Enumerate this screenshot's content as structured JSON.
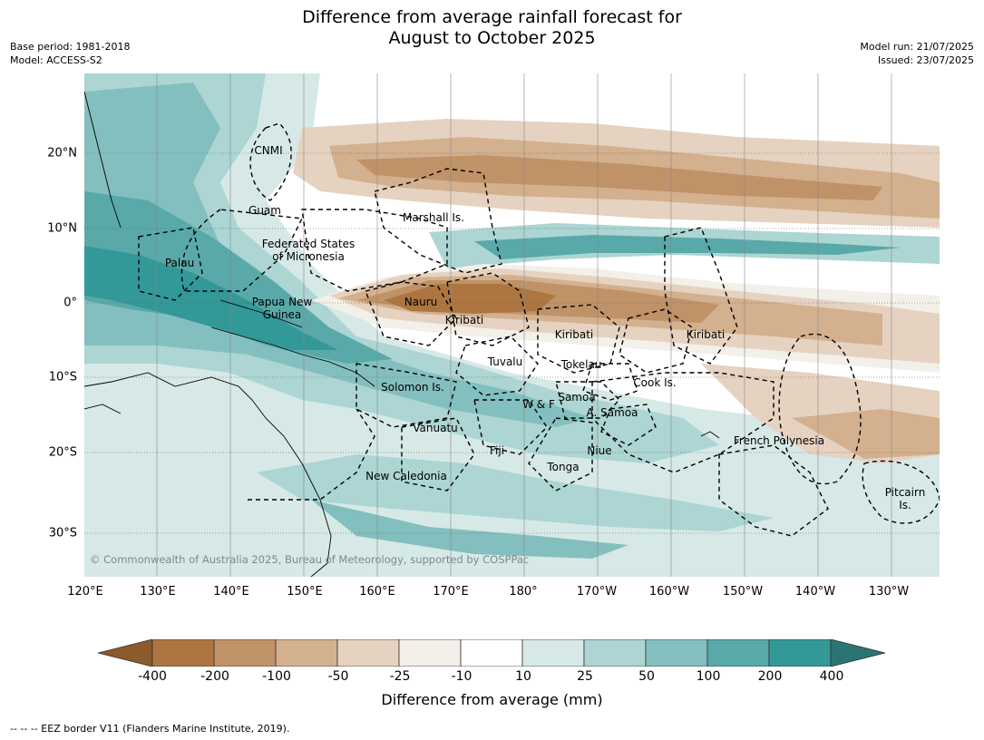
{
  "title_line1": "Difference from average rainfall forecast for",
  "title_line2": "August to October 2025",
  "meta": {
    "base_period": "Base period: 1981-2018",
    "model": "Model: ACCESS-S2",
    "model_run": "Model run: 21/07/2025",
    "issued": "Issued: 23/07/2025"
  },
  "lat_labels": [
    "20°N",
    "10°N",
    "0°",
    "10°S",
    "20°S",
    "30°S"
  ],
  "lon_labels": [
    "120°E",
    "130°E",
    "140°E",
    "150°E",
    "160°E",
    "170°E",
    "180°",
    "170°W",
    "160°W",
    "150°W",
    "140°W",
    "130°W"
  ],
  "countries": {
    "cnmi": "CNMI",
    "guam": "Guam",
    "marshall": "Marshall Is.",
    "fsm1": "Federated States",
    "fsm2": "of Micronesia",
    "palau": "Palau",
    "png1": "Papua New",
    "png2": "Guinea",
    "nauru": "Nauru",
    "kiribati_w": "Kiribati",
    "kiribati_c": "Kiribati",
    "kiribati_e": "Kiribati",
    "tuvalu": "Tuvalu",
    "tokelau": "Tokelau",
    "cook": "Cook Is.",
    "solomon": "Solomon Is.",
    "wf": "W & F",
    "samoa": "Samoa",
    "asamoa": "A. Samoa",
    "vanuatu": "Vanuatu",
    "fiji": "Fiji",
    "niue": "Niue",
    "tonga": "Tonga",
    "french_polynesia": "French Polynesia",
    "new_caledonia": "New Caledonia",
    "pitcairn1": "Pitcairn",
    "pitcairn2": "Is."
  },
  "copyright": "© Commonwealth of Australia 2025, Bureau of Meteorology, supported by COSPPac",
  "colorbar": {
    "ticks": [
      "-400",
      "-200",
      "-100",
      "-50",
      "-25",
      "-10",
      "10",
      "25",
      "50",
      "100",
      "200",
      "400"
    ],
    "colors": [
      "#8c5a2b",
      "#ad7640",
      "#c09267",
      "#d3b08e",
      "#e6d2c0",
      "#f3efe9",
      "#ffffff",
      "#d6e9e7",
      "#acd5d3",
      "#84bfbf",
      "#59a9a9",
      "#339898",
      "#2a7574"
    ],
    "label": "Difference from average (mm)"
  },
  "eez_note": "--  --  -- EEZ border V11 (Flanders Marine Institute, 2019)."
}
